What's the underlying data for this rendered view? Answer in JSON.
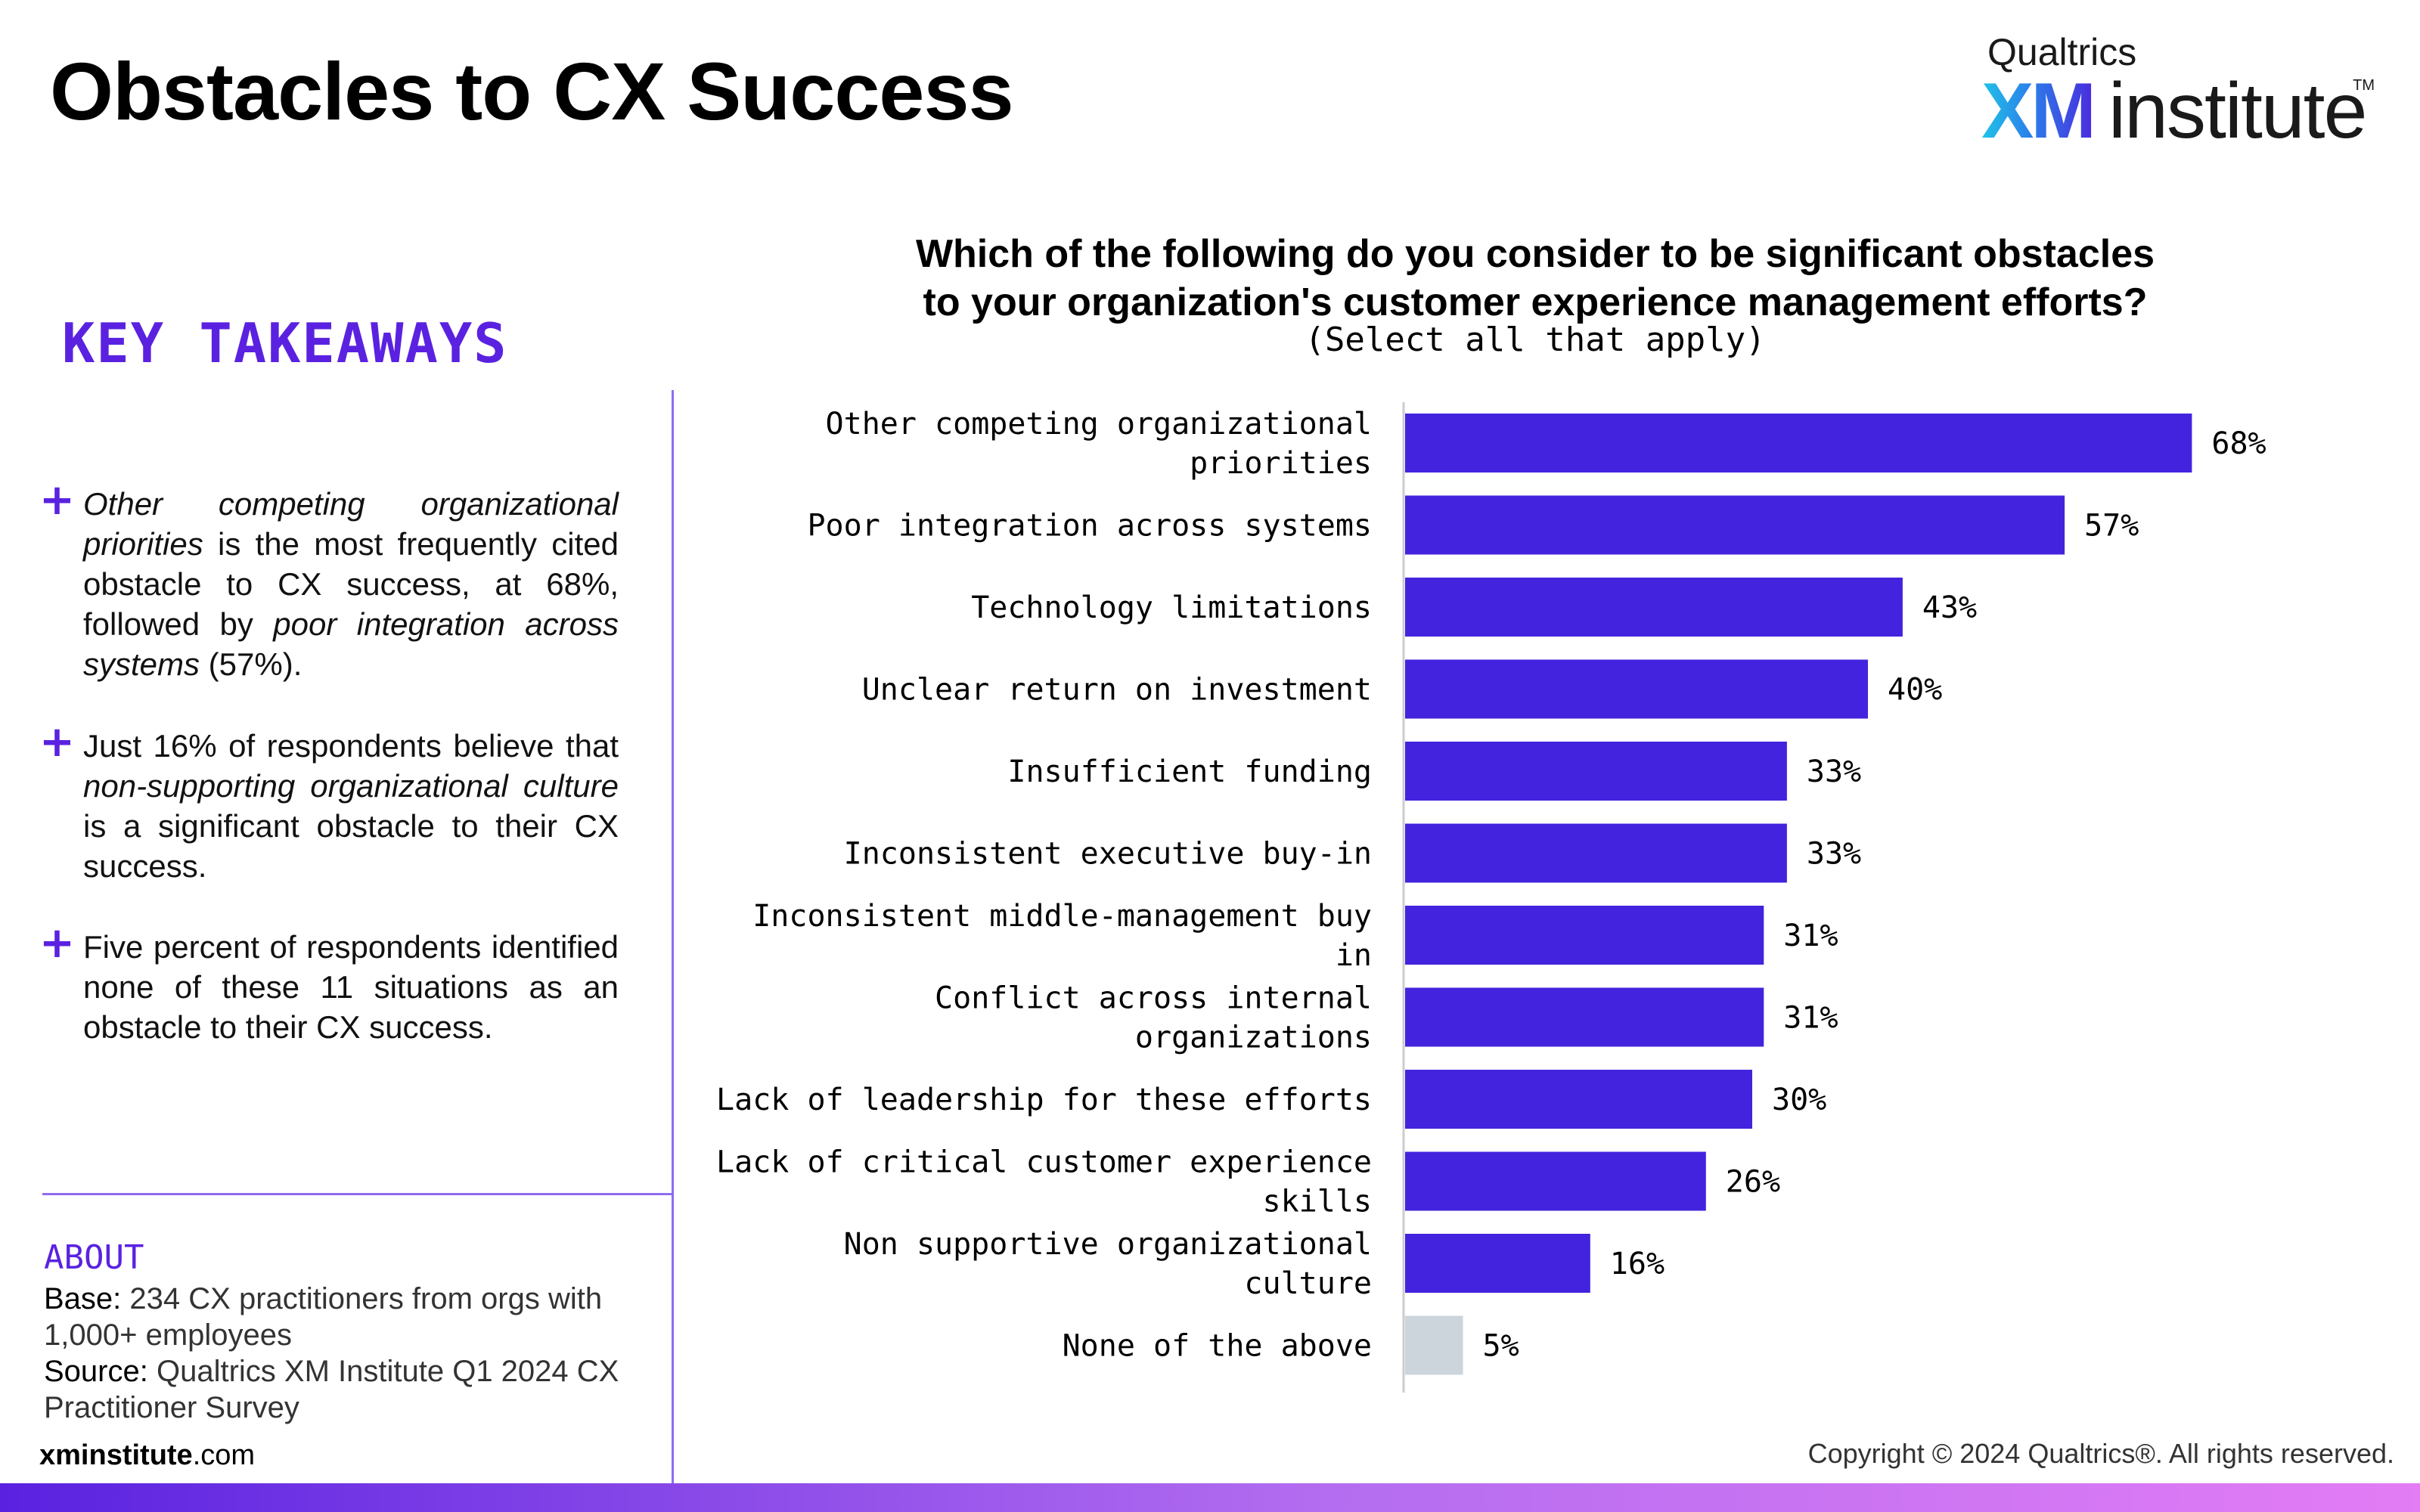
{
  "title": "Obstacles to CX Success",
  "logo": {
    "top": "Qualtrics",
    "xm": "XM",
    "rest": "institute",
    "tm": "TM"
  },
  "takeaways": {
    "heading": "KEY TAKEAWAYS",
    "items": [
      [
        {
          "t": "Other competing organizational priorities",
          "i": true
        },
        {
          "t": " is the most frequently cited obstacle to CX success, at 68%, followed by ",
          "i": false
        },
        {
          "t": "poor integration across systems",
          "i": true
        },
        {
          "t": " (57%).",
          "i": false
        }
      ],
      [
        {
          "t": "Just 16% of respondents believe that ",
          "i": false
        },
        {
          "t": "non-supporting organizational culture",
          "i": true
        },
        {
          "t": " is a significant obstacle to their CX success.",
          "i": false
        }
      ],
      [
        {
          "t": "Five percent of respondents identified none of these 11 situations as an obstacle to their CX success.",
          "i": false
        }
      ]
    ]
  },
  "about": {
    "heading": "ABOUT",
    "base_label": "Base:",
    "base_text": " 234 CX practitioners from orgs with 1,000+ employees",
    "source_label": "Source:",
    "source_text": " Qualtrics XM Institute Q1 2024 CX Practitioner Survey"
  },
  "footer": {
    "site_bold": "xminstitute",
    "site_rest": ".com",
    "copyright": "Copyright © 2024 Qualtrics®. All rights reserved."
  },
  "chart_data": {
    "type": "bar",
    "orientation": "horizontal",
    "title_lines": [
      "Which of the following do you consider to be significant obstacles",
      "to your organization's customer experience management efforts?"
    ],
    "subtitle": "(Select all that apply)",
    "categories": [
      "Other competing organizational priorities",
      "Poor integration across systems",
      "Technology limitations",
      "Unclear return on investment",
      "Insufficient funding",
      "Inconsistent executive buy-in",
      "Inconsistent middle-management buy in",
      "Conflict across internal organizations",
      "Lack of leadership for these efforts",
      "Lack of critical customer experience skills",
      "Non supportive organizational culture",
      "None of the above"
    ],
    "label_lines": [
      [
        "Other competing organizational",
        "priorities"
      ],
      [
        "Poor integration across systems"
      ],
      [
        "Technology limitations"
      ],
      [
        "Unclear return on investment"
      ],
      [
        "Insufficient funding"
      ],
      [
        "Inconsistent executive buy-in"
      ],
      [
        "Inconsistent middle-management buy",
        "in"
      ],
      [
        "Conflict across internal",
        "organizations"
      ],
      [
        "Lack of leadership for these efforts"
      ],
      [
        "Lack of critical customer experience",
        "skills"
      ],
      [
        "Non supportive organizational",
        "culture"
      ],
      [
        "None of the above"
      ]
    ],
    "values": [
      68,
      57,
      43,
      40,
      33,
      33,
      31,
      31,
      30,
      26,
      16,
      5
    ],
    "value_labels": [
      "68%",
      "57%",
      "43%",
      "40%",
      "33%",
      "33%",
      "31%",
      "31%",
      "30%",
      "26%",
      "16%",
      "5%"
    ],
    "unit": "%",
    "xlim": [
      0,
      100
    ],
    "grid": false,
    "colors": {
      "bar": "#4423de",
      "highlight_bar": "#cdd5dc",
      "axis": "#cccccc"
    },
    "highlight_index": 11
  }
}
